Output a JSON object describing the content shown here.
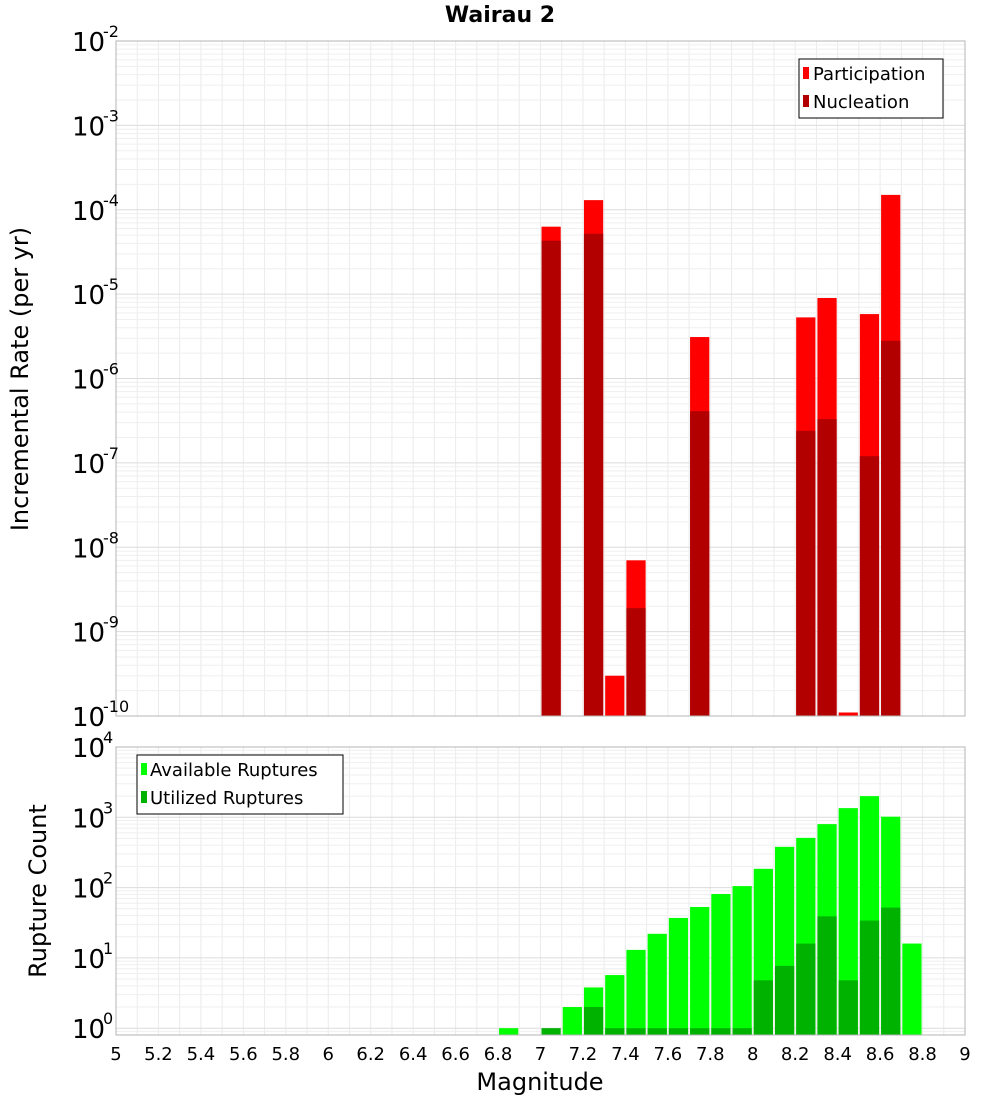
{
  "title": "Wairau 2",
  "colors": {
    "participation": "#ff0000",
    "nucleation": "#b20000",
    "available": "#00ff00",
    "utilized": "#00b200",
    "grid": "#ebebeb",
    "frame": "#b4b4b4"
  },
  "chart_data": [
    {
      "type": "bar",
      "panel": "top",
      "ylabel": "Incremental Rate (per yr)",
      "yscale": "log",
      "ylim": [
        1e-10,
        0.01
      ],
      "xlim": [
        5,
        9
      ],
      "legend_placement": "top-right",
      "grid": true,
      "series": [
        {
          "name": "Participation",
          "color": "#ff0000",
          "points": [
            {
              "x": 7.05,
              "y": 6.3e-05
            },
            {
              "x": 7.25,
              "y": 0.00013
            },
            {
              "x": 7.35,
              "y": 3e-10
            },
            {
              "x": 7.45,
              "y": 7e-09
            },
            {
              "x": 7.75,
              "y": 3.1e-06
            },
            {
              "x": 8.25,
              "y": 5.3e-06
            },
            {
              "x": 8.35,
              "y": 9e-06
            },
            {
              "x": 8.45,
              "y": 1.1e-10
            },
            {
              "x": 8.55,
              "y": 5.8e-06
            },
            {
              "x": 8.65,
              "y": 0.00015
            }
          ]
        },
        {
          "name": "Nucleation",
          "color": "#b20000",
          "points": [
            {
              "x": 7.05,
              "y": 4.3e-05
            },
            {
              "x": 7.25,
              "y": 5.2e-05
            },
            {
              "x": 7.45,
              "y": 1.9e-09
            },
            {
              "x": 7.75,
              "y": 4.1e-07
            },
            {
              "x": 8.25,
              "y": 2.4e-07
            },
            {
              "x": 8.35,
              "y": 3.3e-07
            },
            {
              "x": 8.55,
              "y": 1.2e-07
            },
            {
              "x": 8.65,
              "y": 2.8e-06
            }
          ]
        }
      ]
    },
    {
      "type": "bar",
      "panel": "bottom",
      "xlabel": "Magnitude",
      "ylabel": "Rupture Count",
      "yscale": "log",
      "ylim": [
        0.8,
        10000
      ],
      "xlim": [
        5,
        9
      ],
      "legend_placement": "top-left",
      "grid": true,
      "series": [
        {
          "name": "Available Ruptures",
          "color": "#00ff00",
          "points": [
            {
              "x": 6.85,
              "y": 1
            },
            {
              "x": 7.15,
              "y": 2
            },
            {
              "x": 7.25,
              "y": 3.8
            },
            {
              "x": 7.35,
              "y": 5.7
            },
            {
              "x": 7.45,
              "y": 13
            },
            {
              "x": 7.55,
              "y": 22
            },
            {
              "x": 7.65,
              "y": 37
            },
            {
              "x": 7.75,
              "y": 53
            },
            {
              "x": 7.85,
              "y": 81
            },
            {
              "x": 7.95,
              "y": 105
            },
            {
              "x": 8.05,
              "y": 185
            },
            {
              "x": 8.15,
              "y": 380
            },
            {
              "x": 8.25,
              "y": 510
            },
            {
              "x": 8.35,
              "y": 800
            },
            {
              "x": 8.45,
              "y": 1350
            },
            {
              "x": 8.55,
              "y": 2000
            },
            {
              "x": 8.65,
              "y": 1020
            },
            {
              "x": 8.75,
              "y": 16
            }
          ]
        },
        {
          "name": "Utilized Ruptures",
          "color": "#00b200",
          "points": [
            {
              "x": 7.05,
              "y": 1
            },
            {
              "x": 7.25,
              "y": 2
            },
            {
              "x": 7.35,
              "y": 1
            },
            {
              "x": 7.45,
              "y": 1
            },
            {
              "x": 7.55,
              "y": 1
            },
            {
              "x": 7.65,
              "y": 1
            },
            {
              "x": 7.75,
              "y": 1
            },
            {
              "x": 7.85,
              "y": 1
            },
            {
              "x": 7.95,
              "y": 1
            },
            {
              "x": 8.05,
              "y": 4.8
            },
            {
              "x": 8.15,
              "y": 7.7
            },
            {
              "x": 8.25,
              "y": 16
            },
            {
              "x": 8.35,
              "y": 39
            },
            {
              "x": 8.45,
              "y": 4.8
            },
            {
              "x": 8.55,
              "y": 34
            },
            {
              "x": 8.65,
              "y": 52
            }
          ]
        }
      ]
    }
  ],
  "x_ticks": [
    "5",
    "5.2",
    "5.4",
    "5.6",
    "5.8",
    "6",
    "6.2",
    "6.4",
    "6.6",
    "6.8",
    "7",
    "7.2",
    "7.4",
    "7.6",
    "7.8",
    "8",
    "8.2",
    "8.4",
    "8.6",
    "8.8",
    "9"
  ],
  "top_y_ticks": [
    {
      "base": "10",
      "exp": "-2"
    },
    {
      "base": "10",
      "exp": "-3"
    },
    {
      "base": "10",
      "exp": "-4"
    },
    {
      "base": "10",
      "exp": "-5"
    },
    {
      "base": "10",
      "exp": "-6"
    },
    {
      "base": "10",
      "exp": "-7"
    },
    {
      "base": "10",
      "exp": "-8"
    },
    {
      "base": "10",
      "exp": "-9"
    },
    {
      "base": "10",
      "exp": "-10"
    }
  ],
  "bottom_y_ticks": [
    {
      "base": "10",
      "exp": "4"
    },
    {
      "base": "10",
      "exp": "3"
    },
    {
      "base": "10",
      "exp": "2"
    },
    {
      "base": "10",
      "exp": "1"
    },
    {
      "base": "10",
      "exp": "0"
    }
  ]
}
